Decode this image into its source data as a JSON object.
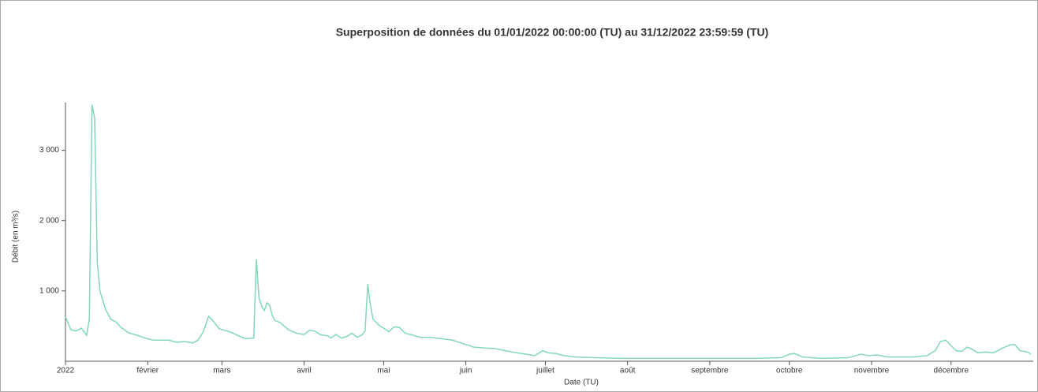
{
  "chart_data": {
    "type": "line",
    "title": "Superposition de données du 01/01/2022 00:00:00 (TU) au 31/12/2022 23:59:59 (TU)",
    "x_label": "Date (TU)",
    "y_label": "Débit (en m³/s)",
    "color": "#82d8b6",
    "x": [
      "2022-01-01",
      "2022-01-03",
      "2022-01-05",
      "2022-01-07",
      "2022-01-09",
      "2022-01-10",
      "2022-01-11",
      "2022-01-12",
      "2022-01-13",
      "2022-01-14",
      "2022-01-16",
      "2022-01-18",
      "2022-01-20",
      "2022-01-22",
      "2022-01-25",
      "2022-01-28",
      "2022-01-31",
      "2022-02-03",
      "2022-02-06",
      "2022-02-09",
      "2022-02-12",
      "2022-02-15",
      "2022-02-18",
      "2022-02-20",
      "2022-02-22",
      "2022-02-24",
      "2022-02-26",
      "2022-02-28",
      "2022-03-04",
      "2022-03-08",
      "2022-03-10",
      "2022-03-12",
      "2022-03-13",
      "2022-03-14",
      "2022-03-15",
      "2022-03-16",
      "2022-03-17",
      "2022-03-18",
      "2022-03-19",
      "2022-03-20",
      "2022-03-21",
      "2022-03-23",
      "2022-03-26",
      "2022-03-29",
      "2022-04-01",
      "2022-04-03",
      "2022-04-05",
      "2022-04-07",
      "2022-04-10",
      "2022-04-11",
      "2022-04-13",
      "2022-04-15",
      "2022-04-17",
      "2022-04-19",
      "2022-04-21",
      "2022-04-23",
      "2022-04-24",
      "2022-04-25",
      "2022-04-26",
      "2022-04-27",
      "2022-04-29",
      "2022-05-01",
      "2022-05-03",
      "2022-05-05",
      "2022-05-07",
      "2022-05-09",
      "2022-05-12",
      "2022-05-15",
      "2022-05-19",
      "2022-05-23",
      "2022-05-27",
      "2022-05-31",
      "2022-06-04",
      "2022-06-08",
      "2022-06-12",
      "2022-06-16",
      "2022-06-20",
      "2022-06-24",
      "2022-06-27",
      "2022-06-30",
      "2022-07-02",
      "2022-07-05",
      "2022-07-08",
      "2022-07-12",
      "2022-07-20",
      "2022-07-30",
      "2022-08-09",
      "2022-08-19",
      "2022-08-29",
      "2022-09-08",
      "2022-09-18",
      "2022-09-28",
      "2022-10-01",
      "2022-10-03",
      "2022-10-06",
      "2022-10-13",
      "2022-10-23",
      "2022-10-28",
      "2022-10-31",
      "2022-11-03",
      "2022-11-07",
      "2022-11-17",
      "2022-11-22",
      "2022-11-25",
      "2022-11-27",
      "2022-11-29",
      "2022-12-01",
      "2022-12-03",
      "2022-12-05",
      "2022-12-07",
      "2022-12-09",
      "2022-12-11",
      "2022-12-14",
      "2022-12-17",
      "2022-12-20",
      "2022-12-23",
      "2022-12-25",
      "2022-12-27",
      "2022-12-30",
      "2022-12-31"
    ],
    "values": [
      630,
      450,
      430,
      470,
      370,
      600,
      3650,
      3450,
      1400,
      1000,
      750,
      600,
      560,
      480,
      400,
      370,
      330,
      300,
      300,
      300,
      270,
      280,
      260,
      300,
      420,
      640,
      560,
      460,
      420,
      350,
      320,
      330,
      330,
      1450,
      900,
      780,
      720,
      830,
      800,
      650,
      580,
      550,
      450,
      400,
      380,
      440,
      430,
      380,
      360,
      330,
      380,
      330,
      350,
      400,
      340,
      380,
      430,
      1100,
      800,
      600,
      520,
      470,
      420,
      490,
      480,
      400,
      370,
      340,
      340,
      320,
      300,
      250,
      200,
      190,
      180,
      150,
      120,
      100,
      80,
      150,
      120,
      110,
      80,
      60,
      50,
      40,
      40,
      40,
      40,
      40,
      40,
      50,
      100,
      110,
      60,
      40,
      50,
      100,
      80,
      90,
      60,
      60,
      80,
      150,
      280,
      300,
      220,
      150,
      140,
      200,
      170,
      120,
      130,
      120,
      180,
      230,
      240,
      150,
      130,
      100
    ],
    "xlim": [
      "2022-01-01T00:00:00",
      "2022-12-31T23:59:59"
    ],
    "xticks": [
      {
        "value": "2022-01-01",
        "label": "2022"
      },
      {
        "value": "2022-02-01",
        "label": "février"
      },
      {
        "value": "2022-03-01",
        "label": "mars"
      },
      {
        "value": "2022-04-01",
        "label": "avril"
      },
      {
        "value": "2022-05-01",
        "label": "mai"
      },
      {
        "value": "2022-06-01",
        "label": "juin"
      },
      {
        "value": "2022-07-01",
        "label": "juillet"
      },
      {
        "value": "2022-08-01",
        "label": "août"
      },
      {
        "value": "2022-09-01",
        "label": "septembre"
      },
      {
        "value": "2022-10-01",
        "label": "octobre"
      },
      {
        "value": "2022-11-01",
        "label": "novembre"
      },
      {
        "value": "2022-12-01",
        "label": "décembre"
      }
    ],
    "ylim": [
      0,
      3680
    ],
    "yticks": [
      {
        "value": 1000,
        "label": "1 000"
      },
      {
        "value": 2000,
        "label": "2 000"
      },
      {
        "value": 3000,
        "label": "3 000"
      }
    ]
  }
}
